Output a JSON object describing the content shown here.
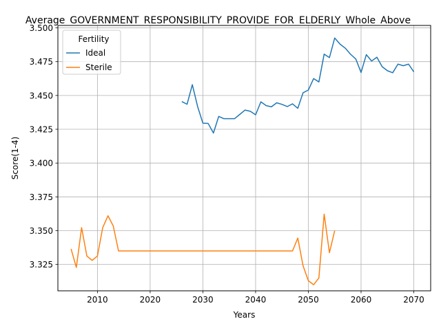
{
  "chart_data": {
    "type": "line",
    "title": "Average_GOVERNMENT_RESPONSIBILITY_PROVIDE_FOR_ELDERLY_Whole_Above_",
    "xlabel": "Years",
    "ylabel": "Score(1-4)",
    "xlim": [
      2002.5,
      2073.2
    ],
    "ylim": [
      3.3055,
      3.5018
    ],
    "xticks": [
      "2010",
      "2020",
      "2030",
      "2040",
      "2050",
      "2060",
      "2070"
    ],
    "yticks": [
      "3.325",
      "3.350",
      "3.375",
      "3.400",
      "3.425",
      "3.450",
      "3.475",
      "3.500"
    ],
    "grid": true,
    "legend": {
      "title": "Fertility",
      "position": "top-left"
    },
    "series": [
      {
        "name": "Ideal",
        "color": "#1f77b4",
        "x": [
          2026,
          2027,
          2028,
          2029,
          2030,
          2031,
          2032,
          2033,
          2034,
          2035,
          2036,
          2037,
          2038,
          2039,
          2040,
          2041,
          2042,
          2043,
          2044,
          2045,
          2046,
          2047,
          2048,
          2049,
          2050,
          2051,
          2052,
          2053,
          2054,
          2055,
          2056,
          2057,
          2058,
          2059,
          2060,
          2061,
          2062,
          2063,
          2064,
          2065,
          2066,
          2067,
          2068,
          2069,
          2070
        ],
        "values": [
          3.4455,
          3.4435,
          3.458,
          3.4418,
          3.4295,
          3.4293,
          3.4222,
          3.4345,
          3.4328,
          3.4328,
          3.4328,
          3.436,
          3.4392,
          3.4383,
          3.4357,
          3.4453,
          3.4425,
          3.4416,
          3.4446,
          3.4434,
          3.4418,
          3.4438,
          3.4405,
          3.452,
          3.454,
          3.4625,
          3.46,
          3.4806,
          3.478,
          3.4925,
          3.488,
          3.485,
          3.4805,
          3.477,
          3.467,
          3.4802,
          3.4755,
          3.4783,
          3.4713,
          3.4683,
          3.4668,
          3.4732,
          3.472,
          3.4732,
          3.4675
        ]
      },
      {
        "name": "Sterile",
        "color": "#ff7f0e",
        "x": [
          2005,
          2006,
          2007,
          2008,
          2009,
          2010,
          2011,
          2012,
          2013,
          2014,
          2015,
          2016,
          2017,
          2018,
          2019,
          2020,
          2021,
          2022,
          2023,
          2024,
          2025,
          2026,
          2027,
          2028,
          2029,
          2030,
          2031,
          2032,
          2033,
          2034,
          2035,
          2036,
          2037,
          2038,
          2039,
          2040,
          2041,
          2042,
          2043,
          2044,
          2045,
          2046,
          2047,
          2048,
          2049,
          2050,
          2051,
          2052,
          2053,
          2054,
          2055
        ],
        "values": [
          3.3365,
          3.3228,
          3.3522,
          3.3312,
          3.328,
          3.3312,
          3.3522,
          3.361,
          3.3535,
          3.335,
          3.335,
          3.335,
          3.335,
          3.335,
          3.335,
          3.335,
          3.335,
          3.335,
          3.335,
          3.335,
          3.335,
          3.335,
          3.335,
          3.335,
          3.335,
          3.335,
          3.335,
          3.335,
          3.335,
          3.335,
          3.335,
          3.335,
          3.335,
          3.335,
          3.335,
          3.335,
          3.335,
          3.335,
          3.335,
          3.335,
          3.335,
          3.335,
          3.335,
          3.3445,
          3.324,
          3.313,
          3.31,
          3.315,
          3.3622,
          3.3337,
          3.35
        ]
      }
    ]
  }
}
